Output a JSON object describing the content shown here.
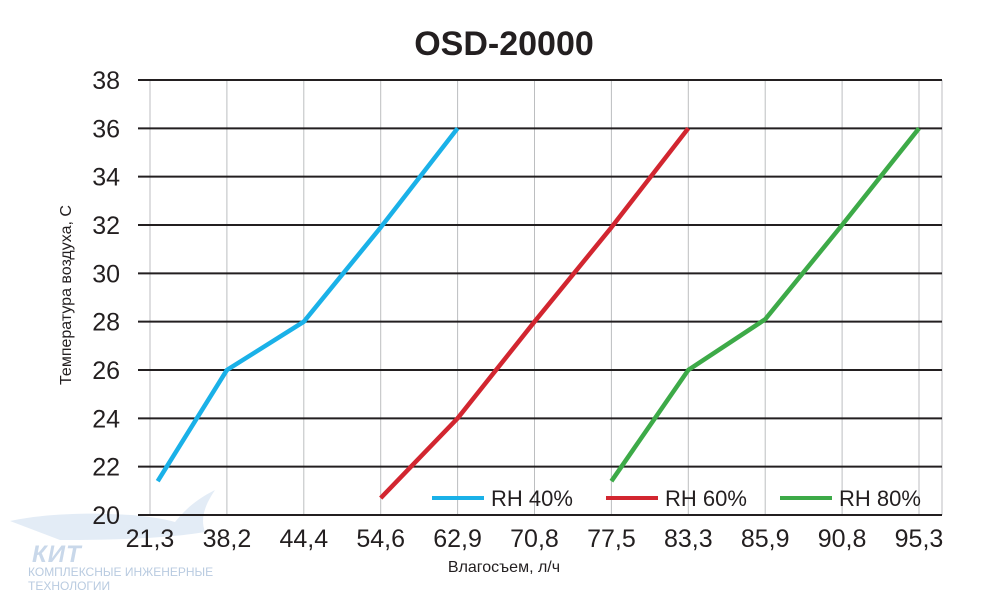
{
  "chart_data": {
    "type": "line",
    "title": "OSD-20000",
    "xlabel": "Влагосъем, л/ч",
    "ylabel": "Температура воздуха, С",
    "x_tick_labels": [
      "21,3",
      "38,2",
      "44,4",
      "54,6",
      "62,9",
      "70,8",
      "77,5",
      "83,3",
      "85,9",
      "90,8",
      "95,3"
    ],
    "y_ticks": [
      20,
      22,
      24,
      26,
      28,
      30,
      32,
      34,
      36,
      38
    ],
    "ylim": [
      20,
      38
    ],
    "grid": "horizontal",
    "legend_position": "bottom-right",
    "series": [
      {
        "name": "RH 40%",
        "color": "#1ab1e8",
        "points": [
          [
            0.1,
            21.4
          ],
          [
            1,
            26
          ],
          [
            2,
            28
          ],
          [
            3,
            31.9
          ],
          [
            4,
            36
          ]
        ]
      },
      {
        "name": "RH 60%",
        "color": "#d22630",
        "points": [
          [
            3,
            20.7
          ],
          [
            4,
            24
          ],
          [
            5,
            28
          ],
          [
            6,
            31.9
          ],
          [
            7,
            36
          ]
        ]
      },
      {
        "name": "RH 80%",
        "color": "#3daa48",
        "points": [
          [
            6,
            21.4
          ],
          [
            7,
            26
          ],
          [
            8,
            28.1
          ],
          [
            9,
            32
          ],
          [
            10,
            36
          ]
        ]
      }
    ]
  },
  "watermark": {
    "brand": "КИТ",
    "line1": "КОМПЛЕКСНЫЕ ИНЖЕНЕРНЫЕ",
    "line2": "ТЕХНОЛОГИИ"
  }
}
